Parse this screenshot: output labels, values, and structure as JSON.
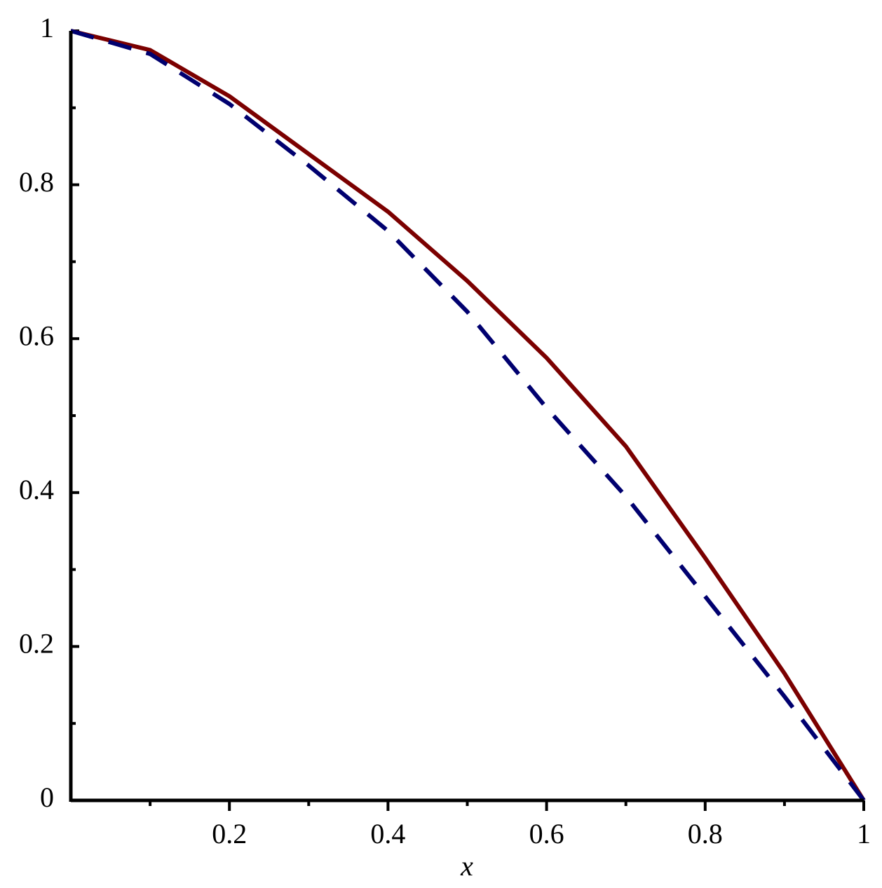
{
  "chart_data": {
    "type": "line",
    "xlabel": "x",
    "x": [
      0,
      0.1,
      0.2,
      0.3,
      0.4,
      0.5,
      0.6,
      0.7,
      0.8,
      0.9,
      1
    ],
    "series": [
      {
        "color": "#7b0000",
        "dash": false,
        "values": [
          1,
          0.975,
          0.915,
          0.84,
          0.765,
          0.675,
          0.575,
          0.46,
          0.315,
          0.165,
          0
        ]
      },
      {
        "color": "#00006f",
        "dash": true,
        "values": [
          1,
          0.97,
          0.905,
          0.825,
          0.74,
          0.635,
          0.51,
          0.395,
          0.265,
          0.135,
          0
        ]
      }
    ],
    "xlim": [
      0,
      1
    ],
    "ylim": [
      0,
      1
    ],
    "xticks": [
      0.2,
      0.4,
      0.6,
      0.8,
      1
    ],
    "yticks": [
      0,
      0.2,
      0.4,
      0.6,
      0.8,
      1
    ]
  }
}
